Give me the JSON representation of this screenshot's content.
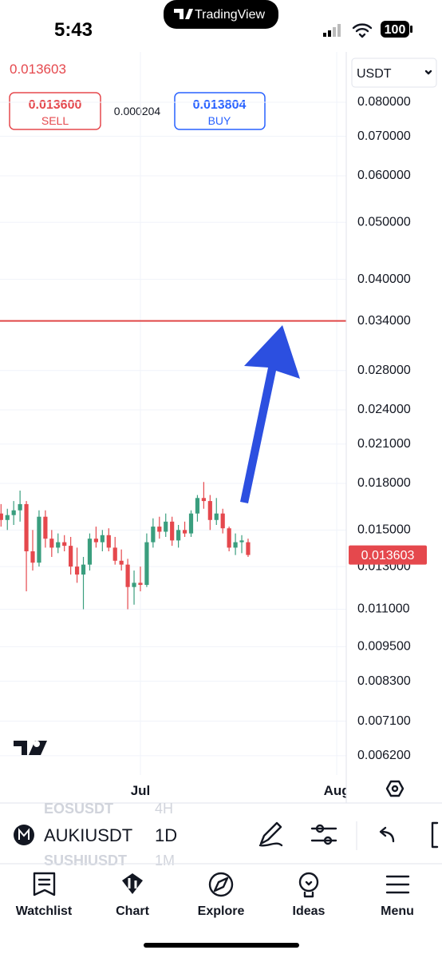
{
  "status_bar": {
    "time": "5:43",
    "battery": "100"
  },
  "app_title": "TradingView",
  "currency": "USDT",
  "trade_panel": {
    "sell_price": "0.013600",
    "sell_label": "SELL",
    "spread": "0.000204",
    "buy_price": "0.013804",
    "buy_label": "BUY"
  },
  "chart_data": {
    "type": "candlestick",
    "log_scale": true,
    "grid": true,
    "up_color": "#3a9e7e",
    "down_color": "#e5484d",
    "categories": [
      null,
      null,
      null,
      null,
      null,
      null,
      null,
      null,
      null,
      null,
      null,
      null,
      null,
      null,
      null,
      null,
      null,
      null,
      null,
      null,
      null,
      null,
      "Jul",
      null,
      null,
      null,
      null,
      null,
      null,
      null,
      null,
      null,
      null,
      null,
      null,
      null,
      null,
      null,
      null,
      null,
      null,
      null,
      null,
      null,
      null,
      null,
      null,
      null,
      null,
      null,
      null,
      null,
      null,
      "Aug"
    ],
    "open": [
      0.016,
      0.0156,
      0.0159,
      0.0162,
      0.0166,
      0.0138,
      0.0132,
      0.0158,
      0.0145,
      0.014,
      0.0143,
      0.0141,
      0.013,
      0.0126,
      0.0131,
      0.0145,
      0.0143,
      0.0147,
      0.014,
      0.0133,
      0.0131,
      0.012,
      0.0122,
      0.0121,
      0.0143,
      0.0152,
      0.0149,
      0.0155,
      0.0144,
      0.015,
      0.0148,
      0.016,
      0.017,
      0.0168,
      0.0156,
      0.016,
      0.0151,
      0.014,
      0.0143,
      0.0143,
      null,
      null,
      null,
      null,
      null,
      null,
      null,
      null,
      null,
      null,
      null,
      null,
      null,
      null
    ],
    "high": [
      0.0166,
      0.0163,
      0.0168,
      0.0175,
      0.0168,
      0.015,
      0.0162,
      0.0162,
      0.015,
      0.0148,
      0.0147,
      0.0146,
      0.014,
      0.0135,
      0.0148,
      0.0152,
      0.015,
      0.0151,
      0.0146,
      0.0139,
      0.0134,
      0.0128,
      0.013,
      0.0148,
      0.0157,
      0.0158,
      0.016,
      0.0158,
      0.0153,
      0.0155,
      0.0162,
      0.0172,
      0.0181,
      0.0172,
      0.017,
      0.0163,
      0.0152,
      0.0148,
      0.0147,
      0.0145,
      null,
      null,
      null,
      null,
      null,
      null,
      null,
      null,
      null,
      null,
      null,
      null,
      null,
      null
    ],
    "low": [
      0.0152,
      0.015,
      0.0153,
      0.0155,
      0.0118,
      0.0128,
      0.013,
      0.014,
      0.0135,
      0.0137,
      0.0138,
      0.0126,
      0.0122,
      0.011,
      0.0128,
      0.014,
      0.0138,
      0.0138,
      0.0131,
      0.0128,
      0.011,
      0.0112,
      0.0118,
      0.012,
      0.014,
      0.0145,
      0.0146,
      0.0141,
      0.014,
      0.0146,
      0.0146,
      0.0155,
      0.0163,
      0.015,
      0.0153,
      0.0148,
      0.0138,
      0.0136,
      0.0137,
      0.0135,
      null,
      null,
      null,
      null,
      null,
      null,
      null,
      null,
      null,
      null,
      null,
      null,
      null,
      null
    ],
    "close": [
      0.0156,
      0.0159,
      0.0162,
      0.0166,
      0.0138,
      0.0132,
      0.0158,
      0.0145,
      0.014,
      0.0143,
      0.0141,
      0.013,
      0.0126,
      0.0131,
      0.0145,
      0.0143,
      0.0147,
      0.014,
      0.0133,
      0.0131,
      0.012,
      0.0122,
      0.0121,
      0.0143,
      0.0152,
      0.0149,
      0.0155,
      0.0144,
      0.015,
      0.0148,
      0.016,
      0.017,
      0.0168,
      0.0156,
      0.016,
      0.0151,
      0.014,
      0.0143,
      0.0144,
      0.013603,
      null,
      null,
      null,
      null,
      null,
      null,
      null,
      null,
      null,
      null,
      null,
      null,
      null,
      null
    ],
    "ylim": [
      0.00575,
      0.0974
    ],
    "yticks": [
      {
        "value": 0.08,
        "label": "0.080000"
      },
      {
        "value": 0.07,
        "label": "0.070000"
      },
      {
        "value": 0.06,
        "label": "0.060000"
      },
      {
        "value": 0.05,
        "label": "0.050000"
      },
      {
        "value": 0.04,
        "label": "0.040000"
      },
      {
        "value": 0.034,
        "label": "0.034000"
      },
      {
        "value": 0.028,
        "label": "0.028000"
      },
      {
        "value": 0.024,
        "label": "0.024000"
      },
      {
        "value": 0.021,
        "label": "0.021000"
      },
      {
        "value": 0.018,
        "label": "0.018000"
      },
      {
        "value": 0.015,
        "label": "0.015000"
      },
      {
        "value": 0.013,
        "label": "0.013000"
      },
      {
        "value": 0.011,
        "label": "0.011000"
      },
      {
        "value": 0.0095,
        "label": "0.009500"
      },
      {
        "value": 0.0083,
        "label": "0.008300"
      },
      {
        "value": 0.0071,
        "label": "0.007100"
      },
      {
        "value": 0.0062,
        "label": "0.006200"
      }
    ],
    "hline": {
      "value": 0.034,
      "color": "#e04848"
    },
    "last_price": {
      "value": 0.013603,
      "label": "0.013603",
      "color": "#e5484d"
    }
  },
  "toolbar": {
    "symbol": "AUKIUSDT",
    "interval": "1D",
    "picker_above": [
      "EOSUSDT",
      "4H"
    ],
    "picker_below": [
      "SUSHIUSDT",
      "1M"
    ]
  },
  "tabs": [
    "Watchlist",
    "Chart",
    "Explore",
    "Ideas",
    "Menu"
  ]
}
